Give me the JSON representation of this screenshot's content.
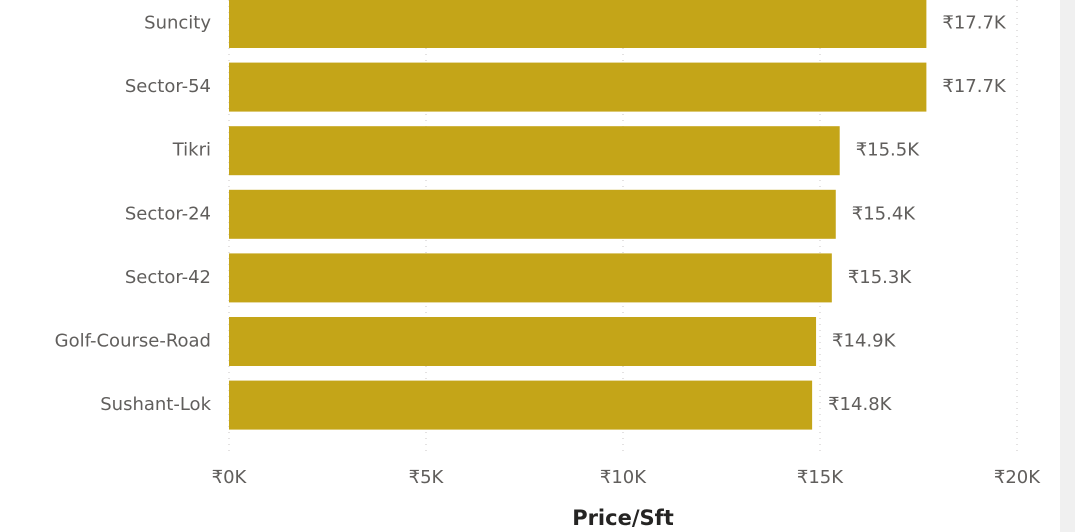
{
  "chart_data": {
    "type": "hbar",
    "x_label": "Price/Sft",
    "categories": [
      "Suncity",
      "Sector-54",
      "Tikri",
      "Sector-24",
      "Sector-42",
      "Golf-Course-Road",
      "Sushant-Lok"
    ],
    "values": [
      17700,
      17700,
      15500,
      15400,
      15300,
      14900,
      14800
    ],
    "value_labels": [
      "₹17.7K",
      "₹17.7K",
      "₹15.5K",
      "₹15.4K",
      "₹15.3K",
      "₹14.9K",
      "₹14.8K"
    ],
    "color": "#c4a518",
    "xlim": [
      0,
      20000
    ],
    "xticks": [
      {
        "value": 0,
        "label": "₹0K"
      },
      {
        "value": 5000,
        "label": "₹5K"
      },
      {
        "value": 10000,
        "label": "₹10K"
      },
      {
        "value": 15000,
        "label": "₹15K"
      },
      {
        "value": 20000,
        "label": "₹20K"
      }
    ],
    "grid": true
  }
}
